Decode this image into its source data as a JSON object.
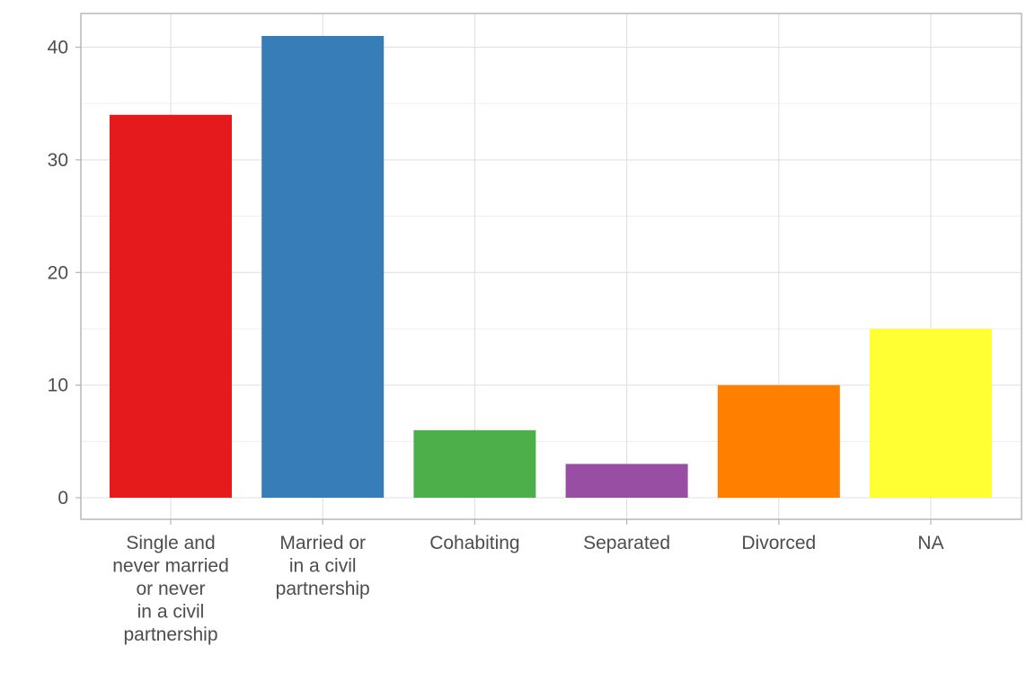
{
  "chart_data": {
    "type": "bar",
    "title": "",
    "xlabel": "",
    "ylabel": "",
    "ylim": [
      0,
      43
    ],
    "yticks": [
      0,
      10,
      20,
      30,
      40
    ],
    "grid": true,
    "legend": "none",
    "categories": [
      [
        "Single and",
        "never married",
        "or never",
        "in a civil",
        "partnership"
      ],
      [
        "Married or",
        "in a civil",
        "partnership"
      ],
      [
        "Cohabiting"
      ],
      [
        "Separated"
      ],
      [
        "Divorced"
      ],
      [
        "NA"
      ]
    ],
    "values": [
      34,
      41,
      6,
      3,
      10,
      15
    ],
    "colors": [
      "#E41A1C",
      "#377EB8",
      "#4DAF4A",
      "#984EA3",
      "#FF7F00",
      "#FFFF33"
    ]
  }
}
